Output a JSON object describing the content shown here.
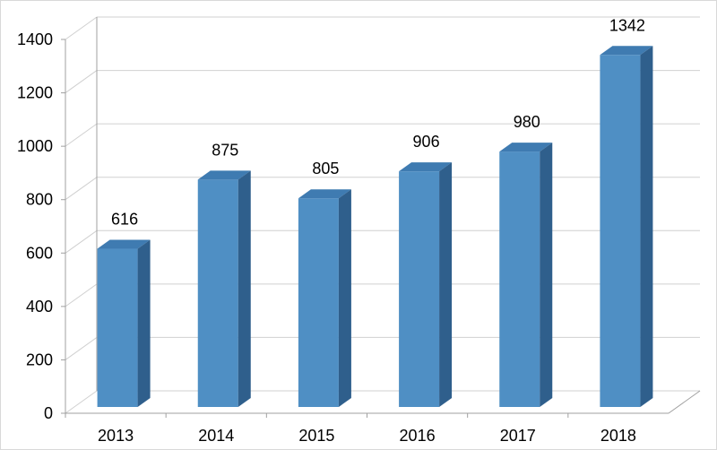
{
  "chart_data": {
    "type": "bar",
    "categories": [
      "2013",
      "2014",
      "2015",
      "2016",
      "2017",
      "2018"
    ],
    "values": [
      616,
      875,
      805,
      906,
      980,
      1342
    ],
    "data_labels": [
      "616",
      "875",
      "805",
      "906",
      "980",
      "1342"
    ],
    "y_ticks": [
      "0",
      "200",
      "400",
      "600",
      "800",
      "1000",
      "1200",
      "1400"
    ],
    "ylim": [
      0,
      1400
    ],
    "grid": true,
    "legend": "none",
    "style": "3d-column",
    "colors": {
      "bar_front": "#4f8fc4",
      "bar_top": "#3f7bb1",
      "bar_side": "#2f5f8c",
      "grid": "#d0d0d0",
      "wall_edge": "#a0a0a0"
    }
  }
}
